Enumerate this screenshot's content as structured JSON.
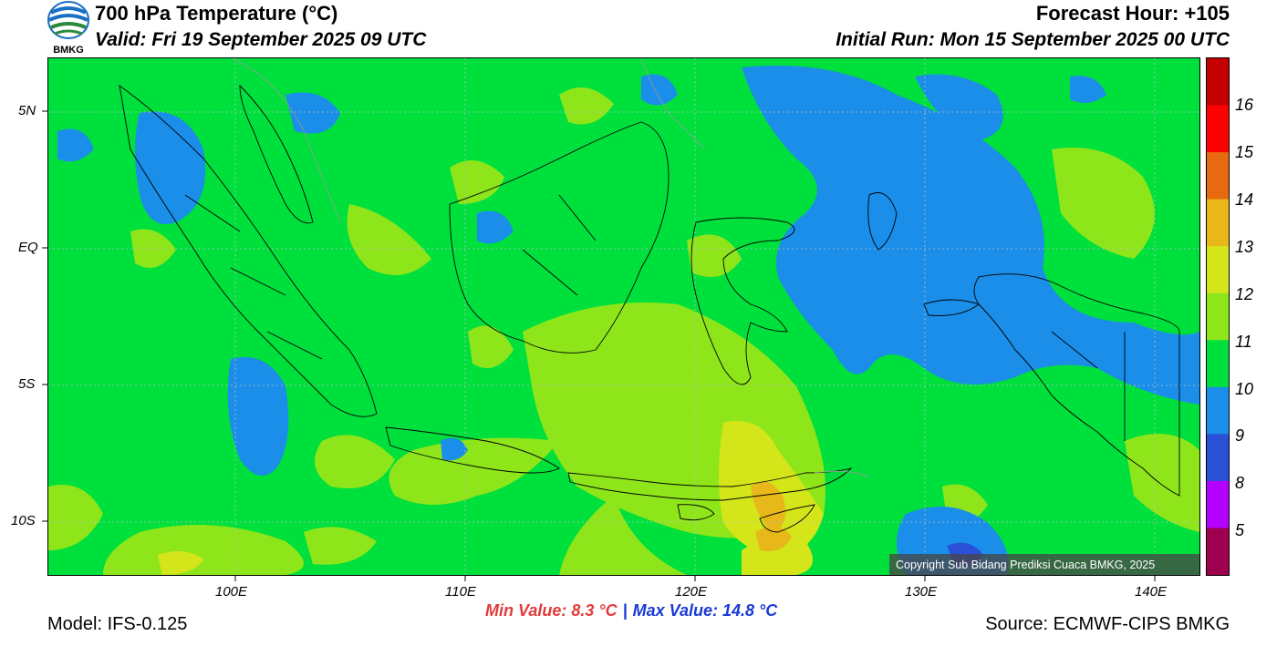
{
  "header": {
    "title": "700 hPa Temperature (°C)",
    "valid": "Valid: Fri 19 September 2025 09 UTC",
    "forecast_hour": "Forecast Hour: +105",
    "initial_run": "Initial Run: Mon 15 September 2025 00 UTC",
    "logo_text": "BMKG"
  },
  "map": {
    "lat_labels": [
      "5N",
      "EQ",
      "5S",
      "10S"
    ],
    "lon_labels": [
      "100E",
      "110E",
      "120E",
      "130E",
      "140E"
    ],
    "copyright": "Copyright Sub Bidang Prediksi Cuaca BMKG, 2025"
  },
  "colorbar": {
    "labels": [
      "16",
      "15",
      "14",
      "13",
      "12",
      "11",
      "10",
      "9",
      "8",
      "5"
    ],
    "colors": [
      "#c40000",
      "#ff0000",
      "#e86a10",
      "#e8b81a",
      "#d4e61a",
      "#8ee61a",
      "#00e03c",
      "#1a8ee8",
      "#2a50d8",
      "#b400ff",
      "#a00050"
    ]
  },
  "stats": {
    "min": "Min Value: 8.3 °C",
    "separator": "|",
    "max": "Max Value: 14.8 °C"
  },
  "footer": {
    "model": "Model: IFS-0.125",
    "source": "Source: ECMWF-CIPS BMKG"
  }
}
